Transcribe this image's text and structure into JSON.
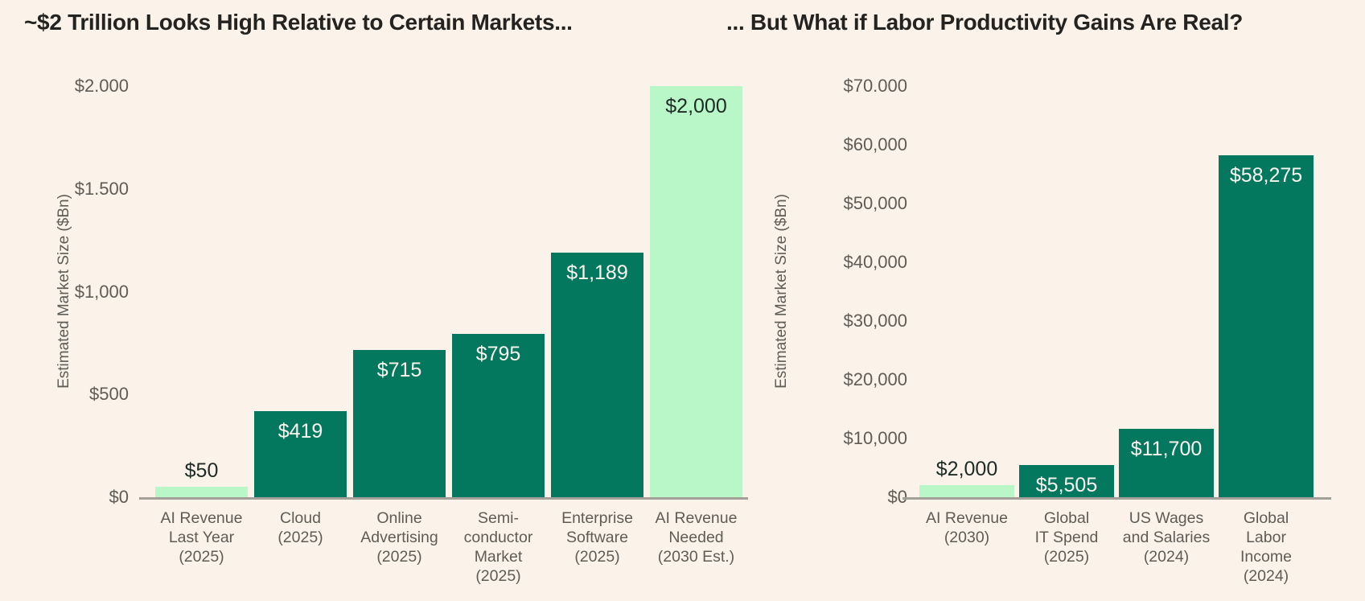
{
  "figure": {
    "kind": "dual-bar-chart-slide"
  },
  "colors": {
    "background": "#fbf3ea",
    "bar_base": "#04785f",
    "bar_highlight": "#b9f7c9",
    "title_text": "#24231f",
    "axis_text": "#5f5b55",
    "axis_line": "#a3a09a",
    "value_on_dark": "#fbf7ee",
    "value_on_light": "#1e2b25"
  },
  "chart_data": [
    {
      "type": "bar",
      "title": "~$2 Trillion Looks High Relative to Certain Markets...",
      "xlabel": "",
      "ylabel": "Estimated Market Size ($Bn)",
      "ylim": [
        0,
        2000
      ],
      "grid": false,
      "legend": "none",
      "yticks": [
        {
          "value": 0,
          "label": "$0"
        },
        {
          "value": 500,
          "label": "$500"
        },
        {
          "value": 1000,
          "label": "$1,000"
        },
        {
          "value": 1500,
          "label": "$1.500"
        },
        {
          "value": 2000,
          "label": "$2.000"
        }
      ],
      "categories": [
        "AI Revenue Last Year (2025)",
        "Cloud (2025)",
        "Online Advertising (2025)",
        "Semi-conductor Market (2025)",
        "Enterprise Software (2025)",
        "AI Revenue Needed (2030 Est.)"
      ],
      "category_lines": [
        [
          "AI Revenue",
          "Last Year",
          "(2025)"
        ],
        [
          "Cloud",
          "(2025)"
        ],
        [
          "Online",
          "Advertising",
          "(2025)"
        ],
        [
          "Semi-",
          "conductor",
          "Market",
          "(2025)"
        ],
        [
          "Enterprise",
          "Software",
          "(2025)"
        ],
        [
          "AI Revenue",
          "Needed",
          "(2030 Est.)"
        ]
      ],
      "values": [
        50,
        419,
        715,
        795,
        1189,
        2000
      ],
      "value_labels": [
        "$50",
        "$419",
        "$715",
        "$795",
        "$1,189",
        "$2,000"
      ],
      "bar_styles": [
        "highlight",
        "base",
        "base",
        "base",
        "base",
        "highlight"
      ],
      "label_positions": [
        "above",
        "inside",
        "inside",
        "inside",
        "inside",
        "inside"
      ]
    },
    {
      "type": "bar",
      "title": "... But What if Labor Productivity Gains Are Real?",
      "xlabel": "",
      "ylabel": "Estimated Market Size ($Bn)",
      "ylim": [
        0,
        70000
      ],
      "grid": false,
      "legend": "none",
      "yticks": [
        {
          "value": 0,
          "label": "$0"
        },
        {
          "value": 10000,
          "label": "$10,000"
        },
        {
          "value": 20000,
          "label": "$20,000"
        },
        {
          "value": 30000,
          "label": "$30,000"
        },
        {
          "value": 40000,
          "label": "$40,000"
        },
        {
          "value": 50000,
          "label": "$50,000"
        },
        {
          "value": 60000,
          "label": "$60,000"
        },
        {
          "value": 70000,
          "label": "$70.000"
        }
      ],
      "categories": [
        "AI Revenue (2030)",
        "Global IT Spend (2025)",
        "US Wages and Salaries (2024)",
        "Global Labor Income (2024)"
      ],
      "category_lines": [
        [
          "AI Revenue",
          "(2030)"
        ],
        [
          "Global",
          "IT Spend",
          "(2025)"
        ],
        [
          "US Wages",
          "and Salaries",
          "(2024)"
        ],
        [
          "Global",
          "Labor",
          "Income",
          "(2024)"
        ]
      ],
      "values": [
        2000,
        5505,
        11700,
        58275
      ],
      "value_labels": [
        "$2,000",
        "$5,505",
        "$11,700",
        "$58,275"
      ],
      "bar_styles": [
        "highlight",
        "base",
        "base",
        "base"
      ],
      "label_positions": [
        "above",
        "inside",
        "inside",
        "inside"
      ]
    }
  ]
}
